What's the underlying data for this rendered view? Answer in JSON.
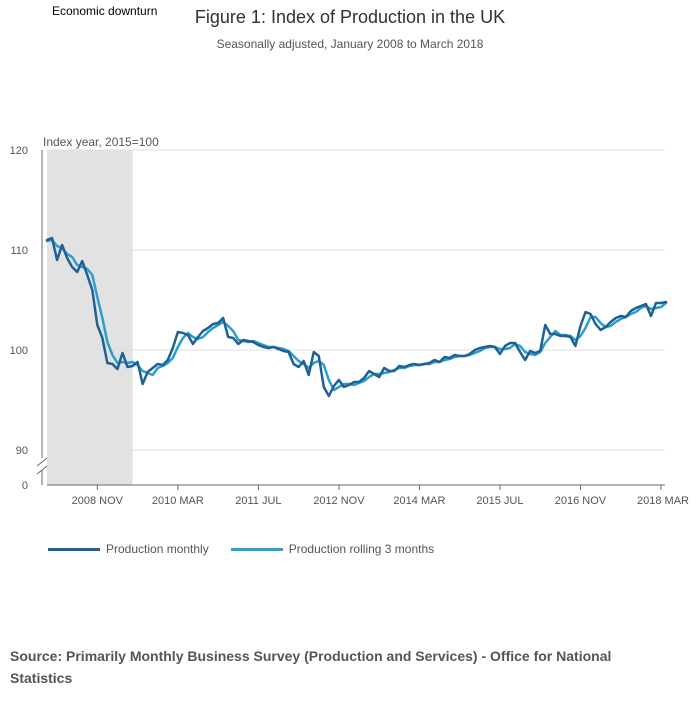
{
  "header": {
    "downturn_label": "Economic downturn",
    "title": "Figure 1: Index of Production in the UK",
    "subtitle": "Seasonally adjusted, January 2008 to March 2018"
  },
  "source": "Source: Primarily Monthly Business Survey (Production and Services) - Office for National Statistics",
  "colors": {
    "monthly": "#206095",
    "rolling": "#27a0cc",
    "downturn": "#e2e2e3",
    "grid": "#e0e0e0",
    "axis": "#6a6a6a"
  },
  "chart_data": {
    "type": "line",
    "ylabel": "Index year, 2015=100",
    "ylim": [
      90,
      120
    ],
    "y_ticks": [
      "120",
      "110",
      "100",
      "90",
      "0"
    ],
    "y_axis_break": true,
    "x_start": "2008-01",
    "x_end": "2018-03",
    "x_ticks": [
      {
        "label": "2008 NOV",
        "date": "2008-11"
      },
      {
        "label": "2010 MAR",
        "date": "2010-03"
      },
      {
        "label": "2011 JUL",
        "date": "2011-07"
      },
      {
        "label": "2012 NOV",
        "date": "2012-11"
      },
      {
        "label": "2014 MAR",
        "date": "2014-03"
      },
      {
        "label": "2015 JUL",
        "date": "2015-07"
      },
      {
        "label": "2016 NOV",
        "date": "2016-11"
      },
      {
        "label": "2018 MAR",
        "date": "2018-03"
      }
    ],
    "shaded_region": {
      "label": "Economic downturn",
      "start": "2008-01",
      "end": "2009-06"
    },
    "grid": true,
    "legend_position": "bottom-left",
    "series": [
      {
        "name": "Production monthly",
        "values": [
          111.0,
          111.2,
          109.0,
          110.5,
          109.2,
          108.3,
          107.8,
          108.9,
          107.5,
          106.0,
          102.5,
          101.2,
          98.7,
          98.6,
          98.1,
          99.7,
          98.3,
          98.4,
          98.8,
          96.6,
          97.8,
          98.2,
          98.6,
          98.5,
          99.0,
          100.2,
          101.8,
          101.7,
          101.5,
          100.6,
          101.3,
          101.9,
          102.2,
          102.6,
          102.7,
          103.2,
          101.3,
          101.2,
          100.6,
          101.0,
          100.9,
          100.8,
          100.5,
          100.3,
          100.2,
          100.3,
          100.1,
          99.9,
          99.8,
          98.6,
          98.3,
          98.9,
          97.5,
          99.8,
          99.4,
          96.3,
          95.4,
          96.4,
          97.0,
          96.3,
          96.5,
          96.8,
          96.8,
          97.2,
          97.9,
          97.6,
          97.3,
          98.2,
          97.9,
          97.9,
          98.4,
          98.3,
          98.5,
          98.6,
          98.5,
          98.6,
          98.7,
          99.0,
          98.8,
          99.3,
          99.2,
          99.5,
          99.4,
          99.4,
          99.6,
          100.0,
          100.2,
          100.3,
          100.4,
          100.3,
          99.6,
          100.4,
          100.7,
          100.7,
          99.8,
          99.0,
          99.9,
          99.7,
          99.9,
          102.5,
          101.6,
          101.6,
          101.4,
          101.4,
          101.3,
          100.4,
          102.4,
          103.8,
          103.6,
          102.6,
          102.0,
          102.3,
          102.8,
          103.2,
          103.4,
          103.3,
          103.9,
          104.2,
          104.4,
          104.6,
          103.4,
          104.7,
          104.7,
          104.8
        ]
      },
      {
        "name": "Production rolling 3 months",
        "values": [
          110.9,
          111.0,
          110.4,
          110.2,
          109.6,
          109.3,
          108.5,
          108.3,
          108.1,
          107.5,
          105.3,
          103.2,
          100.8,
          99.5,
          98.7,
          98.8,
          98.7,
          98.8,
          98.5,
          97.9,
          97.7,
          97.5,
          98.2,
          98.4,
          98.7,
          99.2,
          100.3,
          101.2,
          101.7,
          101.3,
          101.1,
          101.3,
          101.8,
          102.2,
          102.5,
          102.8,
          102.4,
          101.9,
          101.0,
          100.9,
          100.8,
          100.9,
          100.7,
          100.5,
          100.3,
          100.3,
          100.2,
          100.1,
          99.9,
          99.4,
          98.9,
          98.6,
          98.2,
          98.7,
          98.9,
          98.5,
          97.0,
          96.0,
          96.3,
          96.6,
          96.6,
          96.5,
          96.7,
          96.9,
          97.3,
          97.6,
          97.6,
          97.7,
          97.8,
          98.0,
          98.2,
          98.2,
          98.4,
          98.5,
          98.5,
          98.6,
          98.6,
          98.8,
          98.8,
          99.0,
          99.1,
          99.3,
          99.4,
          99.4,
          99.5,
          99.7,
          99.9,
          100.2,
          100.3,
          100.3,
          100.1,
          100.1,
          100.2,
          100.6,
          100.4,
          99.8,
          99.6,
          99.5,
          99.8,
          100.7,
          101.3,
          101.9,
          101.5,
          101.5,
          101.4,
          101.0,
          101.4,
          102.2,
          103.3,
          103.3,
          102.7,
          102.3,
          102.4,
          102.8,
          103.1,
          103.3,
          103.6,
          103.8,
          104.2,
          104.4,
          104.1,
          104.2,
          104.3,
          104.7
        ]
      }
    ]
  }
}
